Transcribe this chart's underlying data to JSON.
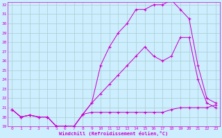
{
  "xlabel": "Windchill (Refroidissement éolien,°C)",
  "bg_color": "#cceeff",
  "line_color": "#cc00cc",
  "grid_color": "#aacccc",
  "line1_x": [
    0,
    1,
    2,
    3,
    4,
    5,
    6,
    7,
    8,
    9,
    10,
    11,
    12,
    13,
    14,
    15,
    16,
    17,
    18,
    19,
    20,
    21,
    22,
    23
  ],
  "line1_y": [
    20.8,
    20.0,
    20.2,
    20.0,
    20.0,
    19.0,
    19.0,
    19.0,
    20.3,
    20.5,
    20.5,
    20.5,
    20.5,
    20.5,
    20.5,
    20.5,
    20.5,
    20.5,
    20.8,
    21.0,
    21.0,
    21.0,
    21.0,
    21.3
  ],
  "line2_x": [
    0,
    1,
    2,
    3,
    4,
    5,
    6,
    7,
    8,
    9,
    10,
    11,
    12,
    13,
    14,
    15,
    16,
    17,
    18,
    19,
    20,
    21,
    22,
    23
  ],
  "line2_y": [
    20.8,
    20.0,
    20.2,
    20.0,
    20.0,
    19.0,
    19.0,
    19.0,
    20.3,
    21.5,
    22.5,
    23.5,
    24.5,
    25.5,
    26.5,
    27.5,
    26.5,
    26.0,
    26.5,
    28.5,
    28.5,
    24.0,
    21.5,
    21.0
  ],
  "line3_x": [
    0,
    1,
    2,
    3,
    4,
    5,
    6,
    7,
    8,
    9,
    10,
    11,
    12,
    13,
    14,
    15,
    16,
    17,
    18,
    19,
    20,
    21,
    22,
    23
  ],
  "line3_y": [
    20.8,
    20.0,
    20.2,
    20.0,
    20.0,
    19.0,
    19.0,
    19.0,
    20.3,
    21.5,
    25.5,
    27.5,
    29.0,
    30.0,
    31.5,
    31.5,
    32.0,
    32.0,
    32.5,
    31.5,
    30.5,
    25.5,
    22.0,
    21.5
  ],
  "ylim": [
    19,
    32
  ],
  "xlim": [
    0,
    23
  ],
  "yticks": [
    19,
    20,
    21,
    22,
    23,
    24,
    25,
    26,
    27,
    28,
    29,
    30,
    31,
    32
  ],
  "xticks": [
    0,
    1,
    2,
    3,
    4,
    5,
    6,
    7,
    8,
    9,
    10,
    11,
    12,
    13,
    14,
    15,
    16,
    17,
    18,
    19,
    20,
    21,
    22,
    23
  ]
}
